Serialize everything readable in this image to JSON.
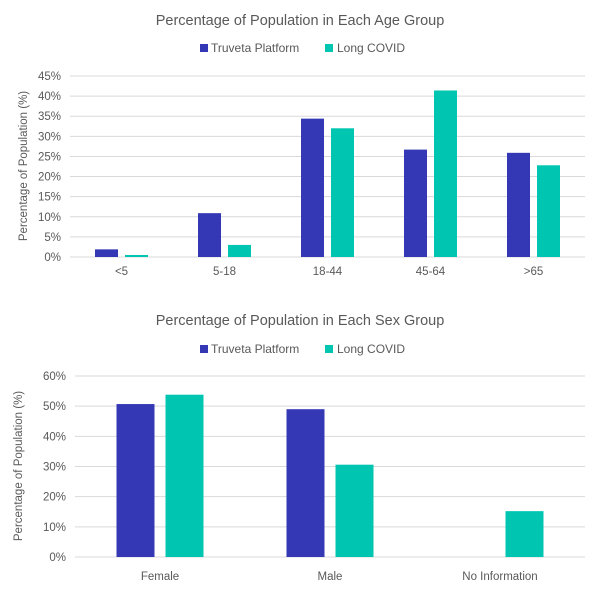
{
  "chart_data": [
    {
      "type": "bar",
      "title": "Percentage of Population in Each Age Group",
      "xlabel": "",
      "ylabel": "Percentage of Population (%)",
      "categories": [
        "<5",
        "5-18",
        "18-44",
        "45-64",
        ">65"
      ],
      "ylim": [
        0,
        45
      ],
      "yticks": [
        0,
        5,
        10,
        15,
        20,
        25,
        30,
        35,
        40,
        45
      ],
      "ytick_labels": [
        "0%",
        "5%",
        "10%",
        "15%",
        "20%",
        "25%",
        "30%",
        "35%",
        "40%",
        "45%"
      ],
      "grid": true,
      "legend_position": "top",
      "series": [
        {
          "name": "Truveta Platform",
          "color": "#3538B5",
          "values": [
            1.9,
            10.9,
            34.4,
            26.7,
            25.9
          ]
        },
        {
          "name": "Long COVID",
          "color": "#00C5B0",
          "values": [
            0.5,
            3.0,
            32.0,
            41.4,
            22.8
          ]
        }
      ]
    },
    {
      "type": "bar",
      "title": "Percentage of Population in Each Sex Group",
      "xlabel": "",
      "ylabel": "Percentage of Population (%)",
      "categories": [
        "Female",
        "Male",
        "No Information"
      ],
      "ylim": [
        0,
        60
      ],
      "yticks": [
        0,
        10,
        20,
        30,
        40,
        50,
        60
      ],
      "ytick_labels": [
        "0%",
        "10%",
        "20%",
        "30%",
        "40%",
        "50%",
        "60%"
      ],
      "grid": true,
      "legend_position": "top",
      "series": [
        {
          "name": "Truveta Platform",
          "color": "#3538B5",
          "values": [
            50.7,
            49.0,
            0
          ]
        },
        {
          "name": "Long COVID",
          "color": "#00C5B0",
          "values": [
            53.8,
            30.6,
            15.2
          ]
        }
      ]
    }
  ]
}
